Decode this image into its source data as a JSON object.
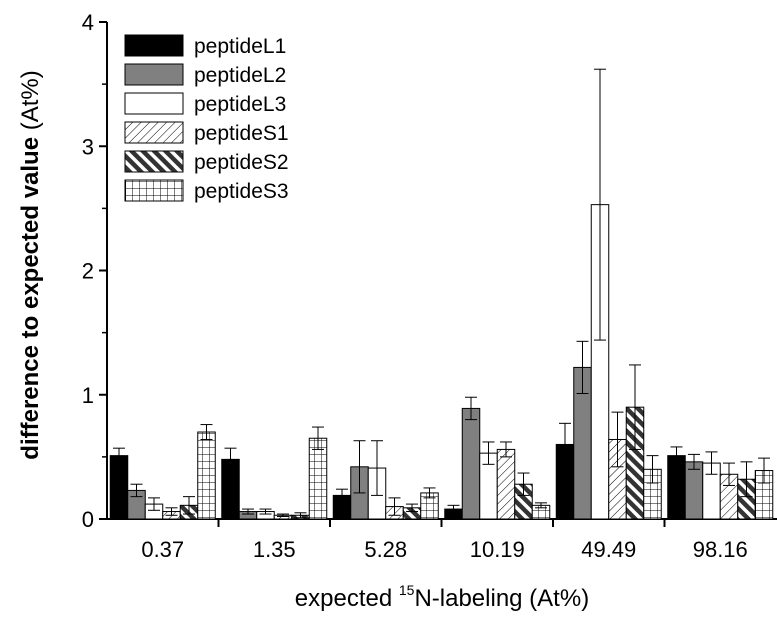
{
  "chart_data": {
    "type": "bar",
    "categories": [
      "0.37",
      "1.35",
      "5.28",
      "10.19",
      "49.49",
      "98.16"
    ],
    "series": [
      {
        "name": "peptideL1",
        "pattern": "solid-black",
        "values": [
          0.51,
          0.48,
          0.19,
          0.08,
          0.6,
          0.51
        ],
        "errors": [
          0.06,
          0.09,
          0.05,
          0.03,
          0.17,
          0.07
        ]
      },
      {
        "name": "peptideL2",
        "pattern": "solid-gray",
        "values": [
          0.23,
          0.06,
          0.42,
          0.89,
          1.22,
          0.46
        ],
        "errors": [
          0.05,
          0.02,
          0.21,
          0.09,
          0.21,
          0.06
        ]
      },
      {
        "name": "peptideL3",
        "pattern": "white",
        "values": [
          0.12,
          0.06,
          0.41,
          0.53,
          2.53,
          0.45
        ],
        "errors": [
          0.05,
          0.02,
          0.22,
          0.09,
          1.09,
          0.09
        ]
      },
      {
        "name": "peptideS1",
        "pattern": "diagonal-thin",
        "values": [
          0.06,
          0.03,
          0.1,
          0.56,
          0.64,
          0.36
        ],
        "errors": [
          0.03,
          0.01,
          0.07,
          0.06,
          0.22,
          0.09
        ]
      },
      {
        "name": "peptideS2",
        "pattern": "diagonal-thick",
        "values": [
          0.11,
          0.03,
          0.09,
          0.28,
          0.9,
          0.32
        ],
        "errors": [
          0.07,
          0.02,
          0.03,
          0.09,
          0.34,
          0.14
        ]
      },
      {
        "name": "peptideS3",
        "pattern": "grid",
        "values": [
          0.7,
          0.65,
          0.21,
          0.11,
          0.4,
          0.39
        ],
        "errors": [
          0.06,
          0.09,
          0.04,
          0.02,
          0.11,
          0.1
        ]
      }
    ],
    "xlabel_prefix": "expected ",
    "xlabel_superscript": "15",
    "xlabel_suffix": "N-labeling (At%)",
    "ylabel": "difference to expected value",
    "ylabel_unit": " (At%)",
    "ylim": [
      0,
      4
    ],
    "yticks": [
      "0",
      "1",
      "2",
      "3",
      "4"
    ],
    "legend_position": "top-left",
    "grid": false
  }
}
